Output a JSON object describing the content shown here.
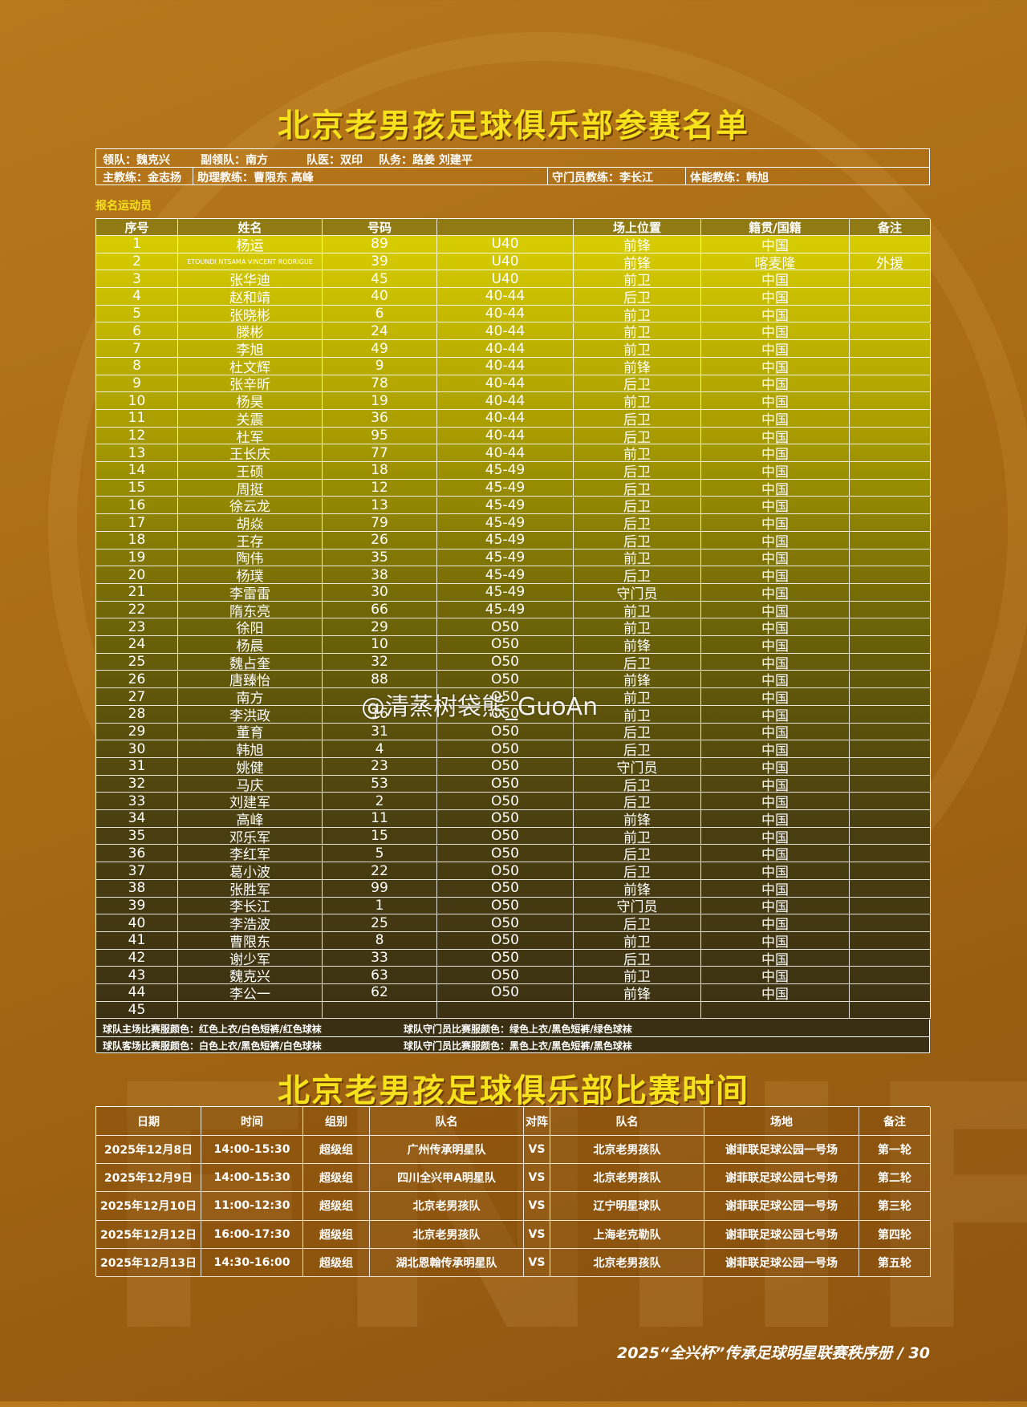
{
  "roster_title": "北京老男孩足球俱乐部参赛名单",
  "staff": [
    [
      "领队：魏克兴",
      "副领队：南方",
      "队医：双印",
      "队务：路姜 刘建平"
    ],
    [
      "主教练：金志扬",
      "助理教练：曹限东 高峰",
      "守门员教练：李长江",
      "体能教练：韩旭"
    ]
  ],
  "section_label": "报名运动员",
  "roster": {
    "header": [
      "序号",
      "姓名",
      "号码",
      null,
      "场上位置",
      "籍贯/国籍",
      "备注"
    ],
    "rows": [
      [
        "1",
        "杨运",
        "89",
        "U40",
        "前锋",
        "中国"
      ],
      [
        "2",
        "ETOUNDI NTSAMA VINCENT RODRIGUE",
        "39",
        "U40",
        "前锋",
        "喀麦隆",
        "外援"
      ],
      [
        "3",
        "张华迪",
        "45",
        "U40",
        "前卫",
        "中国"
      ],
      [
        "4",
        "赵和靖",
        "40",
        "40-44",
        "后卫",
        "中国"
      ],
      [
        "5",
        "张晓彬",
        "6",
        "40-44",
        "前卫",
        "中国"
      ],
      [
        "6",
        "滕彬",
        "24",
        "40-44",
        "前卫",
        "中国"
      ],
      [
        "7",
        "李旭",
        "49",
        "40-44",
        "前卫",
        "中国"
      ],
      [
        "8",
        "杜文辉",
        "9",
        "40-44",
        "前锋",
        "中国"
      ],
      [
        "9",
        "张辛昕",
        "78",
        "40-44",
        "后卫",
        "中国"
      ],
      [
        "10",
        "杨昊",
        "19",
        "40-44",
        "前卫",
        "中国"
      ],
      [
        "11",
        "关震",
        "36",
        "40-44",
        "后卫",
        "中国"
      ],
      [
        "12",
        "杜军",
        "95",
        "40-44",
        "后卫",
        "中国"
      ],
      [
        "13",
        "王长庆",
        "77",
        "40-44",
        "前卫",
        "中国"
      ],
      [
        "14",
        "王硕",
        "18",
        "45-49",
        "后卫",
        "中国"
      ],
      [
        "15",
        "周挺",
        "12",
        "45-49",
        "后卫",
        "中国"
      ],
      [
        "16",
        "徐云龙",
        "13",
        "45-49",
        "后卫",
        "中国"
      ],
      [
        "17",
        "胡焱",
        "79",
        "45-49",
        "后卫",
        "中国"
      ],
      [
        "18",
        "王存",
        "26",
        "45-49",
        "后卫",
        "中国"
      ],
      [
        "19",
        "陶伟",
        "35",
        "45-49",
        "前卫",
        "中国"
      ],
      [
        "20",
        "杨璞",
        "38",
        "45-49",
        "后卫",
        "中国"
      ],
      [
        "21",
        "李雷雷",
        "30",
        "45-49",
        "守门员",
        "中国"
      ],
      [
        "22",
        "隋东亮",
        "66",
        "45-49",
        "前卫",
        "中国"
      ],
      [
        "23",
        "徐阳",
        "29",
        "O50",
        "前卫",
        "中国"
      ],
      [
        "24",
        "杨晨",
        "10",
        "O50",
        "前锋",
        "中国"
      ],
      [
        "25",
        "魏占奎",
        "32",
        "O50",
        "后卫",
        "中国"
      ],
      [
        "26",
        "唐臻怡",
        "88",
        "O50",
        "前锋",
        "中国"
      ],
      [
        "27",
        "南方",
        null,
        "O50",
        "前卫",
        "中国"
      ],
      [
        "28",
        "李洪政",
        "16",
        "O50",
        "前卫",
        "中国"
      ],
      [
        "29",
        "董育",
        "31",
        "O50",
        "后卫",
        "中国"
      ],
      [
        "30",
        "韩旭",
        "4",
        "O50",
        "后卫",
        "中国"
      ],
      [
        "31",
        "姚健",
        "23",
        "O50",
        "守门员",
        "中国"
      ],
      [
        "32",
        "马庆",
        "53",
        "O50",
        "后卫",
        "中国"
      ],
      [
        "33",
        "刘建军",
        "2",
        "O50",
        "后卫",
        "中国"
      ],
      [
        "34",
        "高峰",
        "11",
        "O50",
        "前锋",
        "中国"
      ],
      [
        "35",
        "邓乐军",
        "15",
        "O50",
        "前卫",
        "中国"
      ],
      [
        "36",
        "李红军",
        "5",
        "O50",
        "后卫",
        "中国"
      ],
      [
        "37",
        "葛小波",
        "22",
        "O50",
        "后卫",
        "中国"
      ],
      [
        "38",
        "张胜军",
        "99",
        "O50",
        "前锋",
        "中国"
      ],
      [
        "39",
        "李长江",
        "1",
        "O50",
        "守门员",
        "中国"
      ],
      [
        "40",
        "李浩波",
        "25",
        "O50",
        "后卫",
        "中国"
      ],
      [
        "41",
        "曹限东",
        "8",
        "O50",
        "前卫",
        "中国"
      ],
      [
        "42",
        "谢少军",
        "33",
        "O50",
        "后卫",
        "中国"
      ],
      [
        "43",
        "魏克兴",
        "63",
        "O50",
        "前卫",
        "中国"
      ],
      [
        "44",
        "李公一",
        "62",
        "O50",
        "前锋",
        "中国"
      ],
      [
        "45"
      ]
    ]
  },
  "kit_notes": [
    [
      "球队主场比赛服颜色：红色上衣/白色短裤/红色球袜",
      "球队守门员比赛服颜色：绿色上衣/黑色短裤/绿色球袜"
    ],
    [
      "球队客场比赛服颜色：白色上衣/黑色短裤/白色球袜",
      "球队守门员比赛服颜色：黑色上衣/黑色短裤/黑色球袜"
    ]
  ],
  "schedule_title": "北京老男孩足球俱乐部比赛时间",
  "schedule": {
    "header": [
      "日期",
      "时间",
      "组别",
      "队名",
      "对阵",
      "队名",
      "场地",
      "备注"
    ],
    "rows": [
      [
        "2025年12月8日",
        "14:00-15:30",
        "超级组",
        "广州传承明星队",
        "VS",
        "北京老男孩队",
        "谢菲联足球公园一号场",
        "第一轮"
      ],
      [
        "2025年12月9日",
        "14:00-15:30",
        "超级组",
        "四川全兴甲A明星队",
        "VS",
        "北京老男孩队",
        "谢菲联足球公园七号场",
        "第二轮"
      ],
      [
        "2025年12月10日",
        "11:00-12:30",
        "超级组",
        "北京老男孩队",
        "VS",
        "辽宁明星球队",
        "谢菲联足球公园一号场",
        "第三轮"
      ],
      [
        "2025年12月12日",
        "16:00-17:30",
        "超级组",
        "北京老男孩队",
        "VS",
        "上海老克勒队",
        "谢菲联足球公园七号场",
        "第四轮"
      ],
      [
        "2025年12月13日",
        "14:30-16:00",
        "超级组",
        "湖北恩翰传承明星队",
        "VS",
        "北京老男孩队",
        "谢菲联足球公园一号场",
        "第五轮"
      ]
    ]
  },
  "footer": "2025“全兴杯”传承足球明星联赛秩序册 / 30",
  "watermark": "@清蒸树袋熊_GuoAn"
}
